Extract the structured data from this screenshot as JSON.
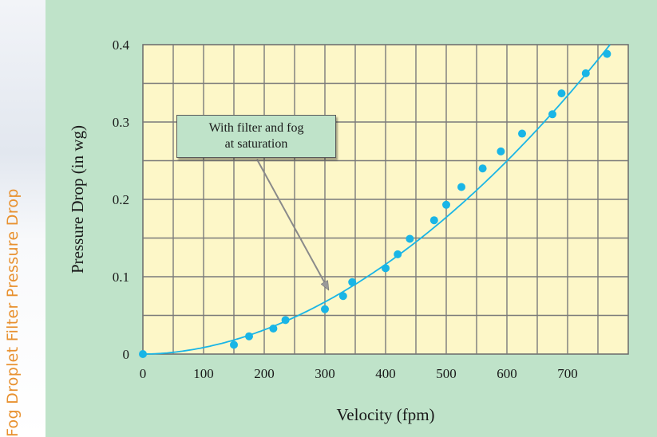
{
  "side_title": "Fog Droplet Filter Pressure Drop",
  "callout": {
    "line1": "With filter and fog",
    "line2": "at saturation"
  },
  "colors": {
    "panel": "#bfe3c9",
    "plot_background": "#fdf7c8",
    "grid": "#7a7a7a",
    "series": "#19b5e6",
    "side_title": "#e8912f"
  },
  "chart_data": {
    "type": "scatter",
    "title": "",
    "xlabel": "Velocity (fpm)",
    "ylabel": "Pressure Drop (in wg)",
    "xlim": [
      0,
      800
    ],
    "ylim": [
      0,
      0.4
    ],
    "x_ticks": [
      "0",
      "100",
      "200",
      "300",
      "400",
      "500",
      "600",
      "700"
    ],
    "y_ticks": [
      "0",
      "0.1",
      "0.2",
      "0.3",
      "0.4"
    ],
    "grid": true,
    "series": [
      {
        "type": "scatter",
        "points": [
          [
            0,
            0.0
          ],
          [
            150,
            0.012
          ],
          [
            175,
            0.023
          ],
          [
            215,
            0.033
          ],
          [
            235,
            0.044
          ],
          [
            300,
            0.058
          ],
          [
            330,
            0.075
          ],
          [
            345,
            0.093
          ],
          [
            400,
            0.111
          ],
          [
            420,
            0.129
          ],
          [
            440,
            0.149
          ],
          [
            480,
            0.173
          ],
          [
            500,
            0.193
          ],
          [
            525,
            0.216
          ],
          [
            560,
            0.24
          ],
          [
            590,
            0.262
          ],
          [
            625,
            0.285
          ],
          [
            675,
            0.31
          ],
          [
            690,
            0.337
          ],
          [
            730,
            0.363
          ],
          [
            765,
            0.388
          ]
        ]
      },
      {
        "type": "line",
        "fit": "power",
        "points": [
          [
            0,
            0.0
          ],
          [
            100,
            0.0115
          ],
          [
            200,
            0.0367
          ],
          [
            300,
            0.0716
          ],
          [
            400,
            0.116
          ],
          [
            500,
            0.168
          ],
          [
            600,
            0.2287
          ],
          [
            700,
            0.2979
          ],
          [
            770,
            0.4
          ]
        ]
      }
    ],
    "annotation": {
      "text": "With filter and fog at saturation",
      "arrow_to": [
        300,
        0.08
      ]
    }
  }
}
